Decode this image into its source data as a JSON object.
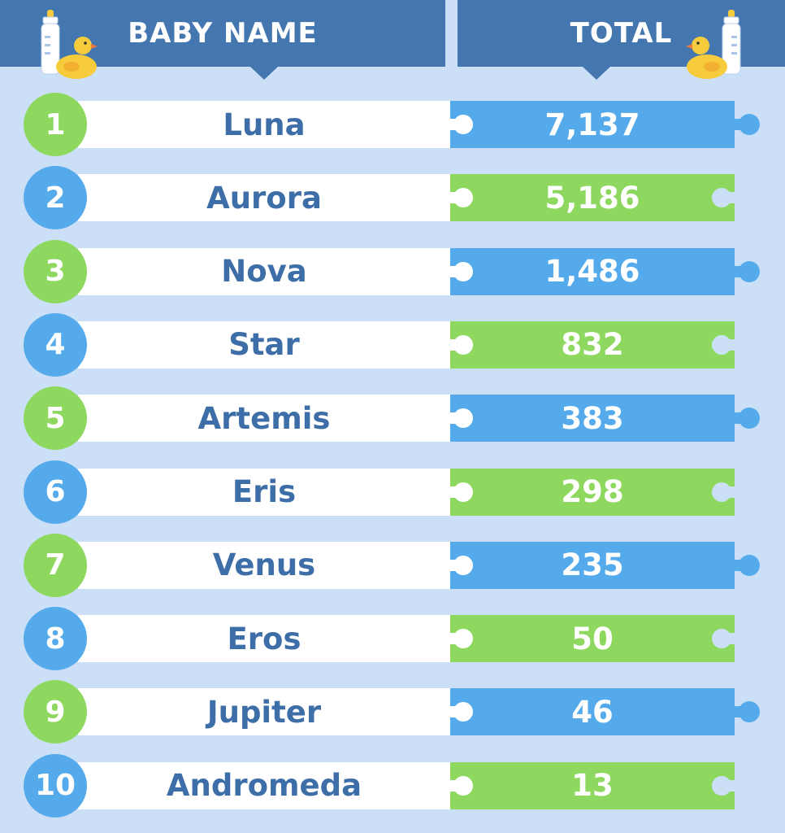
{
  "header": {
    "name_label": "BABY NAME",
    "total_label": "TOTAL"
  },
  "icons": {
    "left": "baby-bottle-and-rubber-duck-icon",
    "right": "rubber-duck-and-baby-bottle-icon"
  },
  "colors": {
    "header": "#4477b0",
    "background": "#cbe0f7",
    "blue": "#55aaeb",
    "green": "#8ed85f",
    "name_text": "#3d6ea8"
  },
  "chart_data": {
    "type": "table",
    "columns": [
      "BABY NAME",
      "TOTAL"
    ],
    "rows": [
      {
        "rank": "1",
        "name": "Luna",
        "total": "7,137",
        "color": "green-badge-blue-total"
      },
      {
        "rank": "2",
        "name": "Aurora",
        "total": "5,186",
        "color": "blue-badge-green-total"
      },
      {
        "rank": "3",
        "name": "Nova",
        "total": "1,486",
        "color": "green-badge-blue-total"
      },
      {
        "rank": "4",
        "name": "Star",
        "total": "832",
        "color": "blue-badge-green-total"
      },
      {
        "rank": "5",
        "name": "Artemis",
        "total": "383",
        "color": "green-badge-blue-total"
      },
      {
        "rank": "6",
        "name": "Eris",
        "total": "298",
        "color": "blue-badge-green-total"
      },
      {
        "rank": "7",
        "name": "Venus",
        "total": "235",
        "color": "green-badge-blue-total"
      },
      {
        "rank": "8",
        "name": "Eros",
        "total": "50",
        "color": "blue-badge-green-total"
      },
      {
        "rank": "9",
        "name": "Jupiter",
        "total": "46",
        "color": "green-badge-blue-total"
      },
      {
        "rank": "10",
        "name": "Andromeda",
        "total": "13",
        "color": "blue-badge-green-total"
      }
    ]
  }
}
